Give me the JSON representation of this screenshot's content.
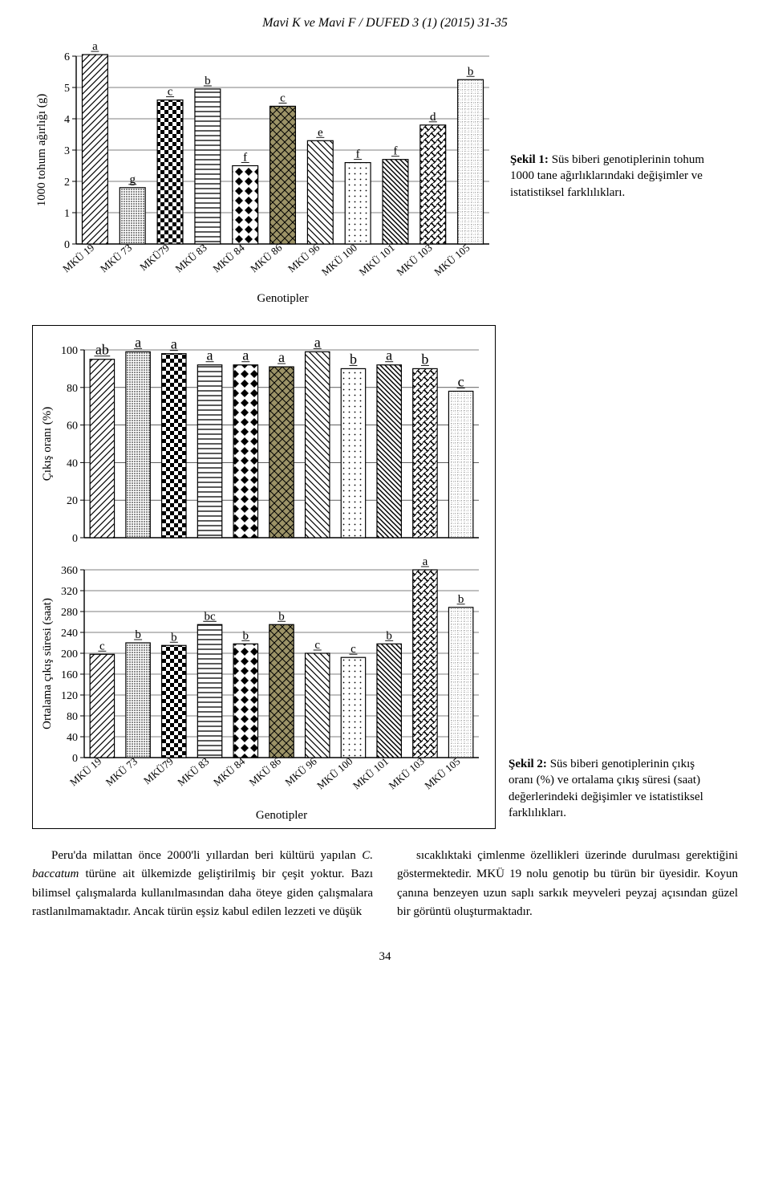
{
  "header": {
    "running_head": "Mavi K ve Mavi F / DUFED 3 (1) (2015) 31-35"
  },
  "colors": {
    "black": "#000000",
    "olive": "#9c9367",
    "white": "#ffffff",
    "grid": "#000000"
  },
  "chart1": {
    "type": "bar",
    "ylabel": "1000 tohum ağırlığı (g)",
    "xlabel": "Genotipler",
    "ylim": [
      0,
      6
    ],
    "ytick_step": 1,
    "categories": [
      "MKÜ 19",
      "MKÜ 73",
      "MKÜ79",
      "MKÜ 83",
      "MKÜ 84",
      "MKÜ 86",
      "MKÜ 96",
      "MKÜ 100",
      "MKÜ 101",
      "MKÜ 103",
      "MKÜ 105"
    ],
    "values": [
      6.05,
      1.8,
      4.6,
      4.95,
      2.5,
      4.4,
      3.3,
      2.6,
      2.7,
      3.8,
      5.25
    ],
    "sig_labels": [
      "a",
      "g",
      "c",
      "b",
      "f",
      "c",
      "e",
      "f",
      "f",
      "d",
      "b"
    ],
    "patterns": [
      "diag1",
      "dense",
      "checker",
      "hstripes",
      "rhombus",
      "cross",
      "diag2",
      "dots",
      "diag3",
      "weave",
      "dotgrid"
    ],
    "fills": [
      "white",
      "white",
      "white",
      "white",
      "white",
      "olive",
      "white",
      "white",
      "white",
      "white",
      "white"
    ],
    "title_fontsize": 15
  },
  "caption1": {
    "bold": "Şekil 1:",
    "text": " Süs biberi genotiplerinin tohum 1000 tane ağırlıklarındaki değişimler ve istatistiksel farklılıkları."
  },
  "chart2": {
    "type": "bar",
    "ylabel": "Çıkış oranı (%)",
    "ylim": [
      0,
      100
    ],
    "ytick_step": 20,
    "categories": [
      "MKÜ 19",
      "MKÜ 73",
      "MKÜ79",
      "MKÜ 83",
      "MKÜ 84",
      "MKÜ 86",
      "MKÜ 96",
      "MKÜ 100",
      "MKÜ 101",
      "MKÜ 103",
      "MKÜ 105"
    ],
    "values": [
      95,
      99,
      98,
      92,
      92,
      91,
      99,
      90,
      92,
      90,
      78
    ],
    "sig_labels": [
      "ab",
      "a",
      "a",
      "a",
      "a",
      "a",
      "a",
      "b",
      "a",
      "b",
      "c"
    ],
    "patterns": [
      "diag1",
      "dense",
      "checker",
      "hstripes",
      "rhombus",
      "cross",
      "diag2",
      "dots",
      "diag3",
      "weave",
      "dotgrid"
    ],
    "fills": [
      "white",
      "white",
      "white",
      "white",
      "white",
      "olive",
      "white",
      "white",
      "white",
      "white",
      "white"
    ]
  },
  "chart3": {
    "type": "bar",
    "ylabel": "Ortalama çıkış süresi (saat)",
    "xlabel": "Genotipler",
    "ylim": [
      0,
      360
    ],
    "ytick_step": 40,
    "categories": [
      "MKÜ 19",
      "MKÜ 73",
      "MKÜ79",
      "MKÜ 83",
      "MKÜ 84",
      "MKÜ 86",
      "MKÜ 96",
      "MKÜ 100",
      "MKÜ 101",
      "MKÜ 103",
      "MKÜ 105"
    ],
    "values": [
      198,
      220,
      215,
      255,
      218,
      255,
      200,
      192,
      218,
      360,
      288
    ],
    "sig_labels": [
      "c",
      "b",
      "b",
      "bc",
      "b",
      "b",
      "c",
      "c",
      "b",
      "a",
      "b"
    ],
    "patterns": [
      "diag1",
      "dense",
      "checker",
      "hstripes",
      "rhombus",
      "cross",
      "diag2",
      "dots",
      "diag3",
      "weave",
      "dotgrid"
    ],
    "fills": [
      "white",
      "white",
      "white",
      "white",
      "white",
      "olive",
      "white",
      "white",
      "white",
      "white",
      "white"
    ]
  },
  "caption2": {
    "bold": "Şekil 2:",
    "text": " Süs biberi genotiplerinin çıkış oranı (%) ve ortalama çıkış süresi (saat) değerlerindeki değişimler ve istatistiksel farklılıkları."
  },
  "body": {
    "left": "Peru'da milattan önce 2000'li yıllardan beri kültürü yapılan <span class='ital'>C. baccatum</span> türüne ait ülkemizde geliştirilmiş bir çeşit yoktur. Bazı bilimsel çalışmalarda kullanılmasından daha öteye giden çalışmalara rastlanılmamaktadır. Ancak türün eşsiz kabul edilen lezzeti ve düşük",
    "right": "sıcaklıktaki çimlenme özellikleri üzerinde durulması gerektiğini göstermektedir. MKÜ 19 nolu genotip bu türün bir üyesidir. Koyun çanına benzeyen uzun saplı sarkık meyveleri peyzaj açısından güzel bir görüntü oluşturmaktadır."
  },
  "page_number": "34"
}
